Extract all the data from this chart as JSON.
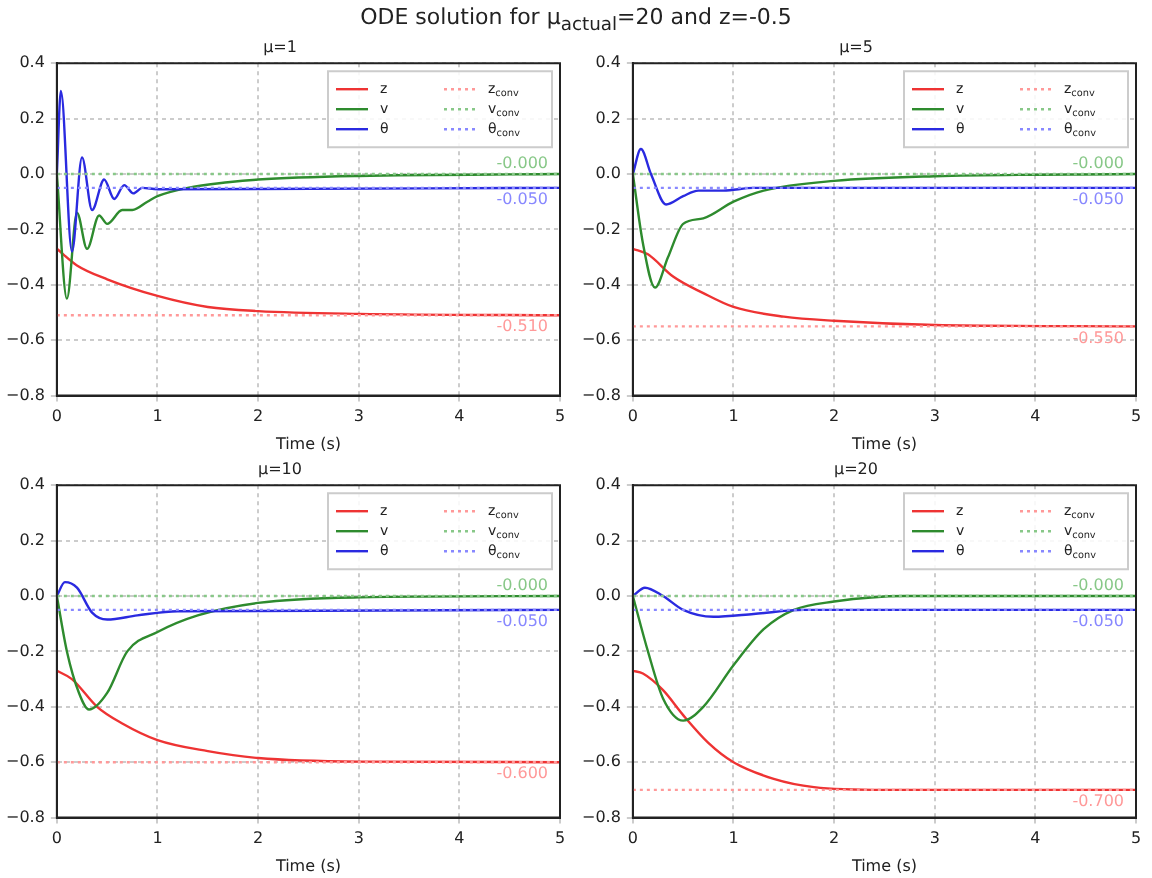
{
  "chart_data": [
    {
      "type": "other",
      "title": "ODE solution for μ$_{actual}$=20 and z=-0.5"
    },
    {
      "type": "line",
      "title": "μ=1",
      "xlabel": "Time (s)",
      "xlim": [
        0,
        5
      ],
      "xticks": [
        0,
        1,
        2,
        3,
        4,
        5
      ],
      "ylim": [
        -0.8,
        0.4
      ],
      "yticks": [
        {
          "value": -0.8,
          "label": "−0.8"
        },
        {
          "value": -0.6,
          "label": "−0.6"
        },
        {
          "value": -0.4,
          "label": "−0.4"
        },
        {
          "value": -0.2,
          "label": "−0.2"
        },
        {
          "value": 0,
          "label": "0.0"
        },
        {
          "value": 0.2,
          "label": "0.2"
        },
        {
          "value": 0.4,
          "label": "0.4"
        }
      ],
      "grid": true,
      "legend": "top right",
      "marker": "none",
      "line_style": "solid",
      "series": [
        {
          "name": "z",
          "color": "#ee3333",
          "x": [
            0,
            0.2,
            0.5,
            1,
            1.5,
            2,
            3,
            5
          ],
          "values": [
            -0.27,
            -0.33,
            -0.38,
            -0.44,
            -0.48,
            -0.495,
            -0.505,
            -0.51
          ]
        },
        {
          "name": "v",
          "color": "#2e8b2e",
          "x": [
            0,
            0.1,
            0.2,
            0.3,
            0.42,
            0.5,
            0.65,
            0.75,
            0.9,
            1,
            1.3,
            1.7,
            2,
            3,
            5
          ],
          "values": [
            0,
            -0.45,
            -0.14,
            -0.27,
            -0.15,
            -0.18,
            -0.13,
            -0.13,
            -0.1,
            -0.08,
            -0.05,
            -0.03,
            -0.02,
            -0.007,
            0
          ]
        },
        {
          "name": "θ",
          "color": "#2a2ae0",
          "x": [
            0,
            0.04,
            0.15,
            0.25,
            0.35,
            0.47,
            0.57,
            0.67,
            0.76,
            0.85,
            1,
            5
          ],
          "values": [
            0,
            0.3,
            -0.28,
            0.06,
            -0.13,
            -0.02,
            -0.09,
            -0.04,
            -0.07,
            -0.05,
            -0.055,
            -0.05
          ]
        },
        {
          "name": "z$_{conv}$",
          "color": "#ff9999",
          "line_style": "dotted",
          "x": [
            0,
            5
          ],
          "values": [
            -0.51,
            -0.51
          ],
          "value_labels": [
            null,
            "-0.510"
          ]
        },
        {
          "name": "v$_{conv}$",
          "color": "#88c888",
          "line_style": "dotted",
          "x": [
            0,
            5
          ],
          "values": [
            0,
            0
          ],
          "value_labels": [
            null,
            "-0.000"
          ]
        },
        {
          "name": "θ$_{conv}$",
          "color": "#8888ff",
          "line_style": "dotted",
          "x": [
            0,
            5
          ],
          "values": [
            -0.05,
            -0.05
          ],
          "value_labels": [
            null,
            "-0.050"
          ]
        }
      ]
    },
    {
      "type": "line",
      "title": "μ=5",
      "xlabel": "Time (s)",
      "xlim": [
        0,
        5
      ],
      "xticks": [
        0,
        1,
        2,
        3,
        4,
        5
      ],
      "ylim": [
        -0.8,
        0.4
      ],
      "yticks": [
        {
          "value": -0.8,
          "label": "−0.8"
        },
        {
          "value": -0.6,
          "label": "−0.6"
        },
        {
          "value": -0.4,
          "label": "−0.4"
        },
        {
          "value": -0.2,
          "label": "−0.2"
        },
        {
          "value": 0,
          "label": "0.0"
        },
        {
          "value": 0.2,
          "label": "0.2"
        },
        {
          "value": 0.4,
          "label": "0.4"
        }
      ],
      "grid": true,
      "legend": "top right",
      "marker": "none",
      "line_style": "solid",
      "series": [
        {
          "name": "z",
          "color": "#ee3333",
          "x": [
            0,
            0.15,
            0.4,
            0.7,
            1,
            1.5,
            2,
            3,
            5
          ],
          "values": [
            -0.27,
            -0.29,
            -0.37,
            -0.43,
            -0.48,
            -0.515,
            -0.53,
            -0.545,
            -0.55
          ]
        },
        {
          "name": "v",
          "color": "#2e8b2e",
          "x": [
            0,
            0.1,
            0.22,
            0.35,
            0.5,
            0.7,
            1,
            1.3,
            2,
            3,
            5
          ],
          "values": [
            0,
            -0.25,
            -0.41,
            -0.3,
            -0.18,
            -0.16,
            -0.1,
            -0.06,
            -0.025,
            -0.008,
            0
          ]
        },
        {
          "name": "θ",
          "color": "#2a2ae0",
          "x": [
            0,
            0.08,
            0.18,
            0.33,
            0.5,
            0.65,
            0.9,
            1.2,
            5
          ],
          "values": [
            0,
            0.09,
            0,
            -0.11,
            -0.08,
            -0.06,
            -0.06,
            -0.05,
            -0.05
          ]
        },
        {
          "name": "z$_{conv}$",
          "color": "#ff9999",
          "line_style": "dotted",
          "x": [
            0,
            5
          ],
          "values": [
            -0.55,
            -0.55
          ],
          "value_labels": [
            null,
            "-0.550"
          ]
        },
        {
          "name": "v$_{conv}$",
          "color": "#88c888",
          "line_style": "dotted",
          "x": [
            0,
            5
          ],
          "values": [
            0,
            0
          ],
          "value_labels": [
            null,
            "-0.000"
          ]
        },
        {
          "name": "θ$_{conv}$",
          "color": "#8888ff",
          "line_style": "dotted",
          "x": [
            0,
            5
          ],
          "values": [
            -0.05,
            -0.05
          ],
          "value_labels": [
            null,
            "-0.050"
          ]
        }
      ]
    },
    {
      "type": "line",
      "title": "μ=10",
      "xlabel": "Time (s)",
      "xlim": [
        0,
        5
      ],
      "xticks": [
        0,
        1,
        2,
        3,
        4,
        5
      ],
      "ylim": [
        -0.8,
        0.4
      ],
      "yticks": [
        {
          "value": -0.8,
          "label": "−0.8"
        },
        {
          "value": -0.6,
          "label": "−0.6"
        },
        {
          "value": -0.4,
          "label": "−0.4"
        },
        {
          "value": -0.2,
          "label": "−0.2"
        },
        {
          "value": 0,
          "label": "0.0"
        },
        {
          "value": 0.2,
          "label": "0.2"
        },
        {
          "value": 0.4,
          "label": "0.4"
        }
      ],
      "grid": true,
      "legend": "top right",
      "marker": "none",
      "line_style": "solid",
      "series": [
        {
          "name": "z",
          "color": "#ee3333",
          "x": [
            0,
            0.15,
            0.4,
            0.65,
            1,
            1.5,
            2,
            3,
            5
          ],
          "values": [
            -0.27,
            -0.3,
            -0.4,
            -0.46,
            -0.52,
            -0.56,
            -0.585,
            -0.598,
            -0.6
          ]
        },
        {
          "name": "v",
          "color": "#2e8b2e",
          "x": [
            0,
            0.1,
            0.22,
            0.32,
            0.5,
            0.7,
            1,
            1.4,
            2,
            3,
            5
          ],
          "values": [
            0,
            -0.2,
            -0.35,
            -0.41,
            -0.35,
            -0.2,
            -0.13,
            -0.07,
            -0.025,
            -0.005,
            0
          ]
        },
        {
          "name": "θ",
          "color": "#2a2ae0",
          "x": [
            0,
            0.08,
            0.2,
            0.35,
            0.5,
            0.8,
            1.2,
            5
          ],
          "values": [
            0,
            0.05,
            0.03,
            -0.06,
            -0.085,
            -0.07,
            -0.055,
            -0.05
          ]
        },
        {
          "name": "z$_{conv}$",
          "color": "#ff9999",
          "line_style": "dotted",
          "x": [
            0,
            5
          ],
          "values": [
            -0.6,
            -0.6
          ],
          "value_labels": [
            null,
            "-0.600"
          ]
        },
        {
          "name": "v$_{conv}$",
          "color": "#88c888",
          "line_style": "dotted",
          "x": [
            0,
            5
          ],
          "values": [
            0,
            0
          ],
          "value_labels": [
            null,
            "-0.000"
          ]
        },
        {
          "name": "θ$_{conv}$",
          "color": "#8888ff",
          "line_style": "dotted",
          "x": [
            0,
            5
          ],
          "values": [
            -0.05,
            -0.05
          ],
          "value_labels": [
            null,
            "-0.050"
          ]
        }
      ]
    },
    {
      "type": "line",
      "title": "μ=20",
      "xlabel": "Time (s)",
      "xlim": [
        0,
        5
      ],
      "xticks": [
        0,
        1,
        2,
        3,
        4,
        5
      ],
      "ylim": [
        -0.8,
        0.4
      ],
      "yticks": [
        {
          "value": -0.8,
          "label": "−0.8"
        },
        {
          "value": -0.6,
          "label": "−0.6"
        },
        {
          "value": -0.4,
          "label": "−0.4"
        },
        {
          "value": -0.2,
          "label": "−0.2"
        },
        {
          "value": 0,
          "label": "0.0"
        },
        {
          "value": 0.2,
          "label": "0.2"
        },
        {
          "value": 0.4,
          "label": "0.4"
        }
      ],
      "grid": true,
      "legend": "top right",
      "marker": "none",
      "line_style": "solid",
      "series": [
        {
          "name": "z",
          "color": "#ee3333",
          "x": [
            0,
            0.1,
            0.3,
            0.5,
            0.75,
            1,
            1.4,
            1.8,
            2.5,
            5
          ],
          "values": [
            -0.27,
            -0.28,
            -0.34,
            -0.43,
            -0.53,
            -0.6,
            -0.66,
            -0.69,
            -0.7,
            -0.7
          ]
        },
        {
          "name": "v",
          "color": "#2e8b2e",
          "x": [
            0,
            0.15,
            0.3,
            0.5,
            0.7,
            1,
            1.3,
            1.6,
            2,
            2.7,
            5
          ],
          "values": [
            0,
            -0.2,
            -0.37,
            -0.45,
            -0.4,
            -0.25,
            -0.12,
            -0.05,
            -0.02,
            0,
            0
          ]
        },
        {
          "name": "θ",
          "color": "#2a2ae0",
          "x": [
            0,
            0.12,
            0.3,
            0.5,
            0.8,
            1.2,
            1.7,
            5
          ],
          "values": [
            0,
            0.03,
            0,
            -0.05,
            -0.075,
            -0.065,
            -0.05,
            -0.05
          ]
        },
        {
          "name": "z$_{conv}$",
          "color": "#ff9999",
          "line_style": "dotted",
          "x": [
            0,
            5
          ],
          "values": [
            -0.7,
            -0.7
          ],
          "value_labels": [
            null,
            "-0.700"
          ]
        },
        {
          "name": "v$_{conv}$",
          "color": "#88c888",
          "line_style": "dotted",
          "x": [
            0,
            5
          ],
          "values": [
            0,
            0
          ],
          "value_labels": [
            null,
            "-0.000"
          ]
        },
        {
          "name": "θ$_{conv}$",
          "color": "#8888ff",
          "line_style": "dotted",
          "x": [
            0,
            5
          ],
          "values": [
            -0.05,
            -0.05
          ],
          "value_labels": [
            null,
            "-0.050"
          ]
        }
      ]
    }
  ]
}
